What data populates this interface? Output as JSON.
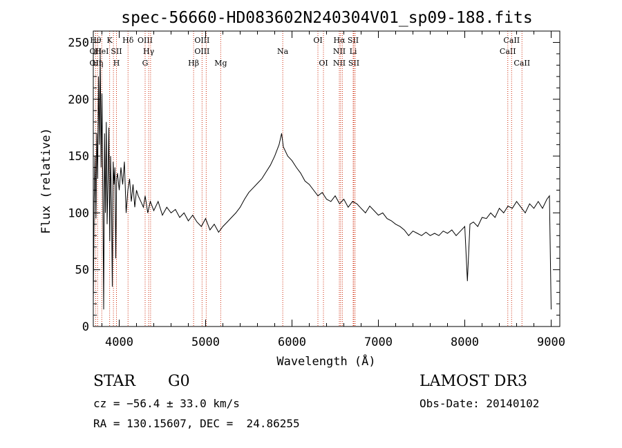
{
  "chart_data": {
    "type": "line",
    "title": "spec-56660-HD083602N240304V01_sp09-188.fits",
    "xlabel": "Wavelength (Å)",
    "ylabel": "Flux (relative)",
    "xlim": [
      3700,
      9100
    ],
    "ylim": [
      0,
      260
    ],
    "x_ticks": [
      4000,
      5000,
      6000,
      7000,
      8000,
      9000
    ],
    "y_ticks": [
      0,
      50,
      100,
      150,
      200,
      250
    ],
    "grid": false,
    "series": [
      {
        "color": "#000000",
        "points": [
          [
            3700,
            20
          ],
          [
            3710,
            110
          ],
          [
            3720,
            150
          ],
          [
            3730,
            95
          ],
          [
            3740,
            170
          ],
          [
            3750,
            130
          ],
          [
            3760,
            220
          ],
          [
            3770,
            160
          ],
          [
            3780,
            240
          ],
          [
            3790,
            140
          ],
          [
            3800,
            205
          ],
          [
            3810,
            120
          ],
          [
            3820,
            15
          ],
          [
            3830,
            170
          ],
          [
            3840,
            100
          ],
          [
            3850,
            180
          ],
          [
            3860,
            90
          ],
          [
            3870,
            130
          ],
          [
            3880,
            175
          ],
          [
            3890,
            75
          ],
          [
            3900,
            150
          ],
          [
            3910,
            110
          ],
          [
            3920,
            35
          ],
          [
            3930,
            145
          ],
          [
            3940,
            125
          ],
          [
            3950,
            140
          ],
          [
            3960,
            60
          ],
          [
            3970,
            130
          ],
          [
            3980,
            135
          ],
          [
            4000,
            120
          ],
          [
            4020,
            140
          ],
          [
            4040,
            125
          ],
          [
            4060,
            145
          ],
          [
            4080,
            100
          ],
          [
            4100,
            120
          ],
          [
            4120,
            130
          ],
          [
            4140,
            110
          ],
          [
            4160,
            125
          ],
          [
            4180,
            105
          ],
          [
            4200,
            120
          ],
          [
            4220,
            115
          ],
          [
            4250,
            110
          ],
          [
            4280,
            105
          ],
          [
            4300,
            115
          ],
          [
            4330,
            100
          ],
          [
            4360,
            110
          ],
          [
            4400,
            102
          ],
          [
            4450,
            110
          ],
          [
            4500,
            98
          ],
          [
            4550,
            105
          ],
          [
            4600,
            100
          ],
          [
            4650,
            103
          ],
          [
            4700,
            96
          ],
          [
            4750,
            100
          ],
          [
            4800,
            93
          ],
          [
            4850,
            98
          ],
          [
            4900,
            92
          ],
          [
            4950,
            88
          ],
          [
            5000,
            95
          ],
          [
            5050,
            85
          ],
          [
            5100,
            90
          ],
          [
            5150,
            83
          ],
          [
            5200,
            88
          ],
          [
            5250,
            92
          ],
          [
            5300,
            96
          ],
          [
            5350,
            100
          ],
          [
            5400,
            105
          ],
          [
            5450,
            112
          ],
          [
            5500,
            118
          ],
          [
            5550,
            122
          ],
          [
            5600,
            126
          ],
          [
            5650,
            130
          ],
          [
            5700,
            136
          ],
          [
            5750,
            142
          ],
          [
            5800,
            150
          ],
          [
            5850,
            160
          ],
          [
            5880,
            170
          ],
          [
            5900,
            158
          ],
          [
            5950,
            150
          ],
          [
            6000,
            146
          ],
          [
            6050,
            140
          ],
          [
            6100,
            135
          ],
          [
            6150,
            128
          ],
          [
            6200,
            125
          ],
          [
            6250,
            120
          ],
          [
            6300,
            115
          ],
          [
            6350,
            118
          ],
          [
            6400,
            112
          ],
          [
            6450,
            110
          ],
          [
            6500,
            115
          ],
          [
            6550,
            108
          ],
          [
            6600,
            112
          ],
          [
            6650,
            105
          ],
          [
            6700,
            110
          ],
          [
            6750,
            108
          ],
          [
            6800,
            104
          ],
          [
            6850,
            100
          ],
          [
            6900,
            106
          ],
          [
            6950,
            102
          ],
          [
            7000,
            98
          ],
          [
            7050,
            100
          ],
          [
            7100,
            95
          ],
          [
            7150,
            93
          ],
          [
            7200,
            90
          ],
          [
            7250,
            88
          ],
          [
            7300,
            85
          ],
          [
            7350,
            80
          ],
          [
            7400,
            84
          ],
          [
            7450,
            82
          ],
          [
            7500,
            80
          ],
          [
            7550,
            83
          ],
          [
            7600,
            80
          ],
          [
            7650,
            82
          ],
          [
            7700,
            80
          ],
          [
            7750,
            84
          ],
          [
            7800,
            82
          ],
          [
            7850,
            85
          ],
          [
            7900,
            80
          ],
          [
            7950,
            84
          ],
          [
            8000,
            88
          ],
          [
            8030,
            40
          ],
          [
            8060,
            90
          ],
          [
            8100,
            92
          ],
          [
            8150,
            88
          ],
          [
            8200,
            96
          ],
          [
            8250,
            95
          ],
          [
            8300,
            100
          ],
          [
            8350,
            96
          ],
          [
            8400,
            104
          ],
          [
            8450,
            100
          ],
          [
            8500,
            106
          ],
          [
            8550,
            104
          ],
          [
            8600,
            110
          ],
          [
            8650,
            105
          ],
          [
            8700,
            100
          ],
          [
            8750,
            108
          ],
          [
            8800,
            104
          ],
          [
            8850,
            110
          ],
          [
            8900,
            104
          ],
          [
            8950,
            112
          ],
          [
            8980,
            115
          ],
          [
            9000,
            15
          ]
        ]
      }
    ],
    "line_markers": [
      {
        "w": 3727,
        "top": "Hθ",
        "mid": "OII",
        "bot": "OII"
      },
      {
        "w": 3750,
        "top": "",
        "mid": "",
        "bot": "Hη"
      },
      {
        "w": 3798,
        "top": "",
        "mid": "HeI",
        "bot": ""
      },
      {
        "w": 3889,
        "top": "K",
        "mid": "",
        "bot": ""
      },
      {
        "w": 3933,
        "top": "",
        "mid": "",
        "bot": ""
      },
      {
        "w": 3968,
        "top": "",
        "mid": "SII",
        "bot": "H"
      },
      {
        "w": 4102,
        "top": "Hδ",
        "mid": "",
        "bot": ""
      },
      {
        "w": 4300,
        "top": "OIII",
        "mid": "",
        "bot": "G"
      },
      {
        "w": 4341,
        "top": "",
        "mid": "Hγ",
        "bot": ""
      },
      {
        "w": 4363,
        "top": "",
        "mid": "",
        "bot": ""
      },
      {
        "w": 4861,
        "top": "",
        "mid": "",
        "bot": "Hβ"
      },
      {
        "w": 4959,
        "top": "OIII",
        "mid": "OIII",
        "bot": ""
      },
      {
        "w": 5007,
        "top": "",
        "mid": "",
        "bot": ""
      },
      {
        "w": 5175,
        "top": "",
        "mid": "",
        "bot": "Mg"
      },
      {
        "w": 5893,
        "top": "",
        "mid": "Na",
        "bot": ""
      },
      {
        "w": 6300,
        "top": "OI",
        "mid": "",
        "bot": ""
      },
      {
        "w": 6364,
        "top": "",
        "mid": "",
        "bot": "OI"
      },
      {
        "w": 6548,
        "top": "Hα",
        "mid": "NII",
        "bot": "NII"
      },
      {
        "w": 6563,
        "top": "",
        "mid": "",
        "bot": ""
      },
      {
        "w": 6583,
        "top": "",
        "mid": "",
        "bot": ""
      },
      {
        "w": 6708,
        "top": "SII",
        "mid": "Li",
        "bot": ""
      },
      {
        "w": 6716,
        "top": "",
        "mid": "",
        "bot": "SII"
      },
      {
        "w": 6731,
        "top": "",
        "mid": "",
        "bot": ""
      },
      {
        "w": 8498,
        "top": "",
        "mid": "CaII",
        "bot": ""
      },
      {
        "w": 8542,
        "top": "CaII",
        "mid": "",
        "bot": ""
      },
      {
        "w": 8662,
        "top": "",
        "mid": "",
        "bot": "CaII"
      }
    ]
  },
  "info": {
    "object_class": "STAR",
    "subclass": "G0",
    "survey": "LAMOST DR3",
    "cz": "cz = −56.4 ± 33.0 km/s",
    "obs_date": "Obs-Date: 20140102",
    "radec": "RA = 130.15607, DEC =  24.86255"
  },
  "colors": {
    "marker_line": "#cc2200",
    "spectrum": "#000000",
    "axes": "#000000"
  }
}
